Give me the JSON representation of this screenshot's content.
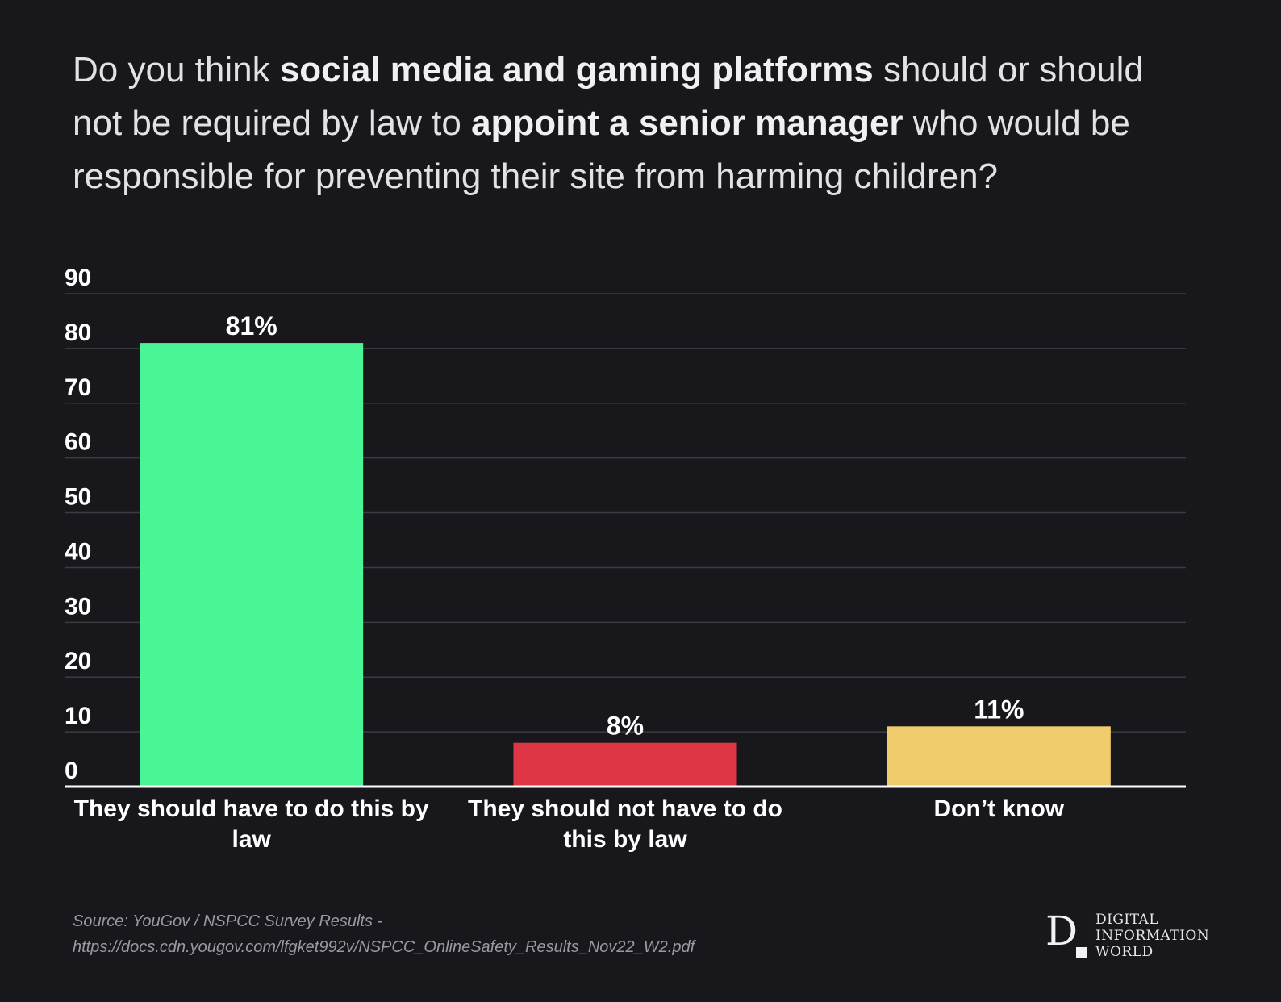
{
  "title": {
    "part1": "Do you think ",
    "bold1": "social media and gaming platforms",
    "part2": " should or should not be required by law to ",
    "bold2": "appoint a senior manager",
    "part3": " who would be responsible for preventing their site from harming children?"
  },
  "chart_data": {
    "type": "bar",
    "title": "Do you think social media and gaming platforms should or should not be required by law to appoint a senior manager who would be responsible for preventing their site from harming children?",
    "xlabel": "",
    "ylabel": "",
    "ylim": [
      0,
      90
    ],
    "yticks": [
      0,
      10,
      20,
      30,
      40,
      50,
      60,
      70,
      80,
      90
    ],
    "grid": true,
    "legend": "none",
    "categories": [
      [
        "They should have to do this by",
        "law"
      ],
      [
        "They should not have to do",
        "this by law"
      ],
      [
        "Don’t know"
      ]
    ],
    "values": [
      81,
      8,
      11
    ],
    "value_labels": [
      "81%",
      "8%",
      "11%"
    ],
    "colors": [
      "#4af596",
      "#de3644",
      "#f0cc6c"
    ]
  },
  "footer": {
    "source_line1": "Source: YouGov / NSPCC Survey Results -",
    "source_line2": "https://docs.cdn.yougov.com/lfgket992v/NSPCC_OnlineSafety_Results_Nov22_W2.pdf"
  },
  "logo": {
    "letter": "D",
    "line1": "DIGITAL",
    "line2": "INFORMATION",
    "line3": "WORLD"
  }
}
